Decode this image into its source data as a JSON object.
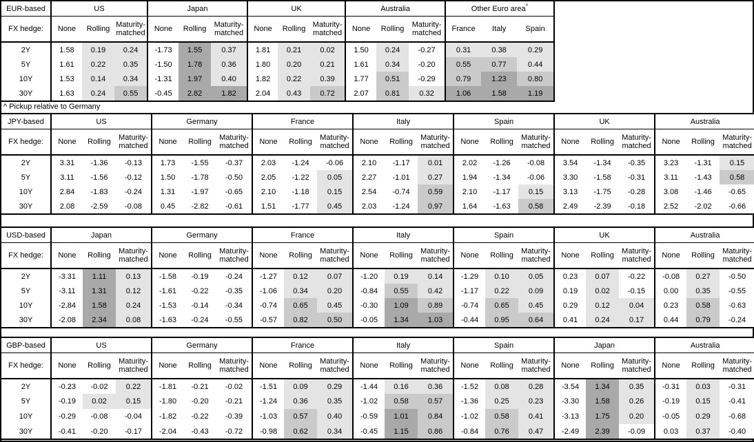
{
  "footnote": "^ Pickup relative to Germany",
  "hedge_label": "FX hedge:",
  "hedge_columns": [
    "None",
    "Rolling",
    "Maturity-matched"
  ],
  "tenors": [
    "2Y",
    "5Y",
    "10Y",
    "30Y"
  ],
  "shading": {
    "negative": "#ffffff",
    "low": "#e4e4e4",
    "mid": "#cacaca",
    "high": "#a9a9a9",
    "thresholds": [
      0,
      0.5,
      1.0
    ]
  },
  "tables": [
    {
      "base_label": "EUR-based",
      "groups": [
        {
          "name": "US",
          "columns": "hedge",
          "rows": [
            [
              "1.58",
              "0.19",
              "0.24"
            ],
            [
              "1.61",
              "0.22",
              "0.35"
            ],
            [
              "1.53",
              "0.14",
              "0.34"
            ],
            [
              "1.63",
              "0.24",
              "0.55"
            ]
          ]
        },
        {
          "name": "Japan",
          "columns": "hedge",
          "rows": [
            [
              "-1.73",
              "1.55",
              "0.37"
            ],
            [
              "-1.50",
              "1.78",
              "0.36"
            ],
            [
              "-1.31",
              "1.97",
              "0.40"
            ],
            [
              "-0.45",
              "2.82",
              "1.82"
            ]
          ]
        },
        {
          "name": "UK",
          "columns": "hedge",
          "rows": [
            [
              "1.81",
              "0.21",
              "0.02"
            ],
            [
              "1.80",
              "0.20",
              "0.21"
            ],
            [
              "1.82",
              "0.22",
              "0.39"
            ],
            [
              "2.04",
              "0.43",
              "0.72"
            ]
          ]
        },
        {
          "name": "Australia",
          "columns": "hedge",
          "rows": [
            [
              "1.50",
              "0.24",
              "-0.27"
            ],
            [
              "1.61",
              "0.34",
              "-0.20"
            ],
            [
              "1.77",
              "0.51",
              "-0.29"
            ],
            [
              "2.07",
              "0.81",
              "0.32"
            ]
          ]
        },
        {
          "name": "Other Euro area",
          "superscript": "^",
          "sub_columns": [
            "France",
            "Italy",
            "Spain"
          ],
          "shade_all": true,
          "rows": [
            [
              "0.31",
              "0.38",
              "0.29"
            ],
            [
              "0.55",
              "0.77",
              "0.44"
            ],
            [
              "0.79",
              "1.23",
              "0.80"
            ],
            [
              "1.06",
              "1.58",
              "1.19"
            ]
          ]
        }
      ]
    },
    {
      "base_label": "JPY-based",
      "groups": [
        {
          "name": "US",
          "columns": "hedge",
          "rows": [
            [
              "3.31",
              "-1.36",
              "-0.13"
            ],
            [
              "3.11",
              "-1.56",
              "-0.12"
            ],
            [
              "2.84",
              "-1.83",
              "-0.24"
            ],
            [
              "2.08",
              "-2.59",
              "-0.08"
            ]
          ]
        },
        {
          "name": "Germany",
          "columns": "hedge",
          "rows": [
            [
              "1.73",
              "-1.55",
              "-0.37"
            ],
            [
              "1.50",
              "-1.78",
              "-0.50"
            ],
            [
              "1.31",
              "-1.97",
              "-0.65"
            ],
            [
              "0.45",
              "-2.82",
              "-0.61"
            ]
          ]
        },
        {
          "name": "France",
          "columns": "hedge",
          "rows": [
            [
              "2.03",
              "-1.24",
              "-0.06"
            ],
            [
              "2.05",
              "-1.22",
              "0.05"
            ],
            [
              "2.10",
              "-1.18",
              "0.15"
            ],
            [
              "1.51",
              "-1.77",
              "0.45"
            ]
          ]
        },
        {
          "name": "Italy",
          "columns": "hedge",
          "rows": [
            [
              "2.10",
              "-1.17",
              "0.01"
            ],
            [
              "2.27",
              "-1.01",
              "0.27"
            ],
            [
              "2.54",
              "-0.74",
              "0.59"
            ],
            [
              "2.03",
              "-1.24",
              "0.97"
            ]
          ]
        },
        {
          "name": "Spain",
          "columns": "hedge",
          "rows": [
            [
              "2.02",
              "-1.26",
              "-0.08"
            ],
            [
              "1.94",
              "-1.34",
              "-0.06"
            ],
            [
              "2.10",
              "-1.17",
              "0.15"
            ],
            [
              "1.64",
              "-1.63",
              "0.58"
            ]
          ]
        },
        {
          "name": "UK",
          "columns": "hedge",
          "rows": [
            [
              "3.54",
              "-1.34",
              "-0.35"
            ],
            [
              "3.30",
              "-1.58",
              "-0.31"
            ],
            [
              "3.13",
              "-1.75",
              "-0.28"
            ],
            [
              "2.49",
              "-2.39",
              "-0.18"
            ]
          ]
        },
        {
          "name": "Australia",
          "columns": "hedge",
          "rows": [
            [
              "3.23",
              "-1.31",
              "0.15"
            ],
            [
              "3.11",
              "-1.43",
              "0.58"
            ],
            [
              "3.08",
              "-1.46",
              "-0.65"
            ],
            [
              "2.52",
              "-2.02",
              "-0.66"
            ]
          ]
        }
      ]
    },
    {
      "base_label": "USD-based",
      "groups": [
        {
          "name": "Japan",
          "columns": "hedge",
          "rows": [
            [
              "-3.31",
              "1.11",
              "0.13"
            ],
            [
              "-3.11",
              "1.31",
              "0.12"
            ],
            [
              "-2.84",
              "1.58",
              "0.24"
            ],
            [
              "-2.08",
              "2.34",
              "0.08"
            ]
          ]
        },
        {
          "name": "Germany",
          "columns": "hedge",
          "rows": [
            [
              "-1.58",
              "-0.19",
              "-0.24"
            ],
            [
              "-1.61",
              "-0.22",
              "-0.35"
            ],
            [
              "-1.53",
              "-0.14",
              "-0.34"
            ],
            [
              "-1.63",
              "-0.24",
              "-0.55"
            ]
          ]
        },
        {
          "name": "France",
          "columns": "hedge",
          "rows": [
            [
              "-1.27",
              "0.12",
              "0.07"
            ],
            [
              "-1.06",
              "0.34",
              "0.20"
            ],
            [
              "-0.74",
              "0.65",
              "0.45"
            ],
            [
              "-0.57",
              "0.82",
              "0.50"
            ]
          ]
        },
        {
          "name": "Italy",
          "columns": "hedge",
          "rows": [
            [
              "-1.20",
              "0.19",
              "0.14"
            ],
            [
              "-0.84",
              "0.55",
              "0.42"
            ],
            [
              "-0.30",
              "1.09",
              "0.89"
            ],
            [
              "-0.05",
              "1.34",
              "1.03"
            ]
          ]
        },
        {
          "name": "Spain",
          "columns": "hedge",
          "rows": [
            [
              "-1.29",
              "0.10",
              "0.05"
            ],
            [
              "-1.17",
              "0.22",
              "0.09"
            ],
            [
              "-0.74",
              "0.65",
              "0.45"
            ],
            [
              "-0.44",
              "0.95",
              "0.64"
            ]
          ]
        },
        {
          "name": "UK",
          "columns": "hedge",
          "rows": [
            [
              "0.23",
              "0.07",
              "-0.22"
            ],
            [
              "0.19",
              "0.02",
              "-0.15"
            ],
            [
              "0.29",
              "0.12",
              "0.04"
            ],
            [
              "0.41",
              "0.24",
              "0.17"
            ]
          ]
        },
        {
          "name": "Australia",
          "columns": "hedge",
          "rows": [
            [
              "-0.08",
              "0.27",
              "-0.50"
            ],
            [
              "0.00",
              "0.35",
              "-0.55"
            ],
            [
              "0.23",
              "0.58",
              "-0.63"
            ],
            [
              "0.44",
              "0.79",
              "-0.24"
            ]
          ]
        }
      ]
    },
    {
      "base_label": "GBP-based",
      "groups": [
        {
          "name": "US",
          "columns": "hedge",
          "rows": [
            [
              "-0.23",
              "-0.02",
              "0.22"
            ],
            [
              "-0.19",
              "0.02",
              "0.15"
            ],
            [
              "-0.29",
              "-0.08",
              "-0.04"
            ],
            [
              "-0.41",
              "-0.20",
              "-0.17"
            ]
          ]
        },
        {
          "name": "Germany",
          "columns": "hedge",
          "rows": [
            [
              "-1.81",
              "-0.21",
              "-0.02"
            ],
            [
              "-1.80",
              "-0.20",
              "-0.21"
            ],
            [
              "-1.82",
              "-0.22",
              "-0.39"
            ],
            [
              "-2.04",
              "-0.43",
              "-0.72"
            ]
          ]
        },
        {
          "name": "France",
          "columns": "hedge",
          "rows": [
            [
              "-1.51",
              "0.09",
              "0.29"
            ],
            [
              "-1.24",
              "0.36",
              "0.35"
            ],
            [
              "-1.03",
              "0.57",
              "0.40"
            ],
            [
              "-0.98",
              "0.62",
              "0.34"
            ]
          ]
        },
        {
          "name": "Italy",
          "columns": "hedge",
          "rows": [
            [
              "-1.44",
              "0.16",
              "0.36"
            ],
            [
              "-1.02",
              "0.58",
              "0.57"
            ],
            [
              "-0.59",
              "1.01",
              "0.84"
            ],
            [
              "-0.45",
              "1.15",
              "0.86"
            ]
          ]
        },
        {
          "name": "Spain",
          "columns": "hedge",
          "rows": [
            [
              "-1.52",
              "0.08",
              "0.28"
            ],
            [
              "-1.36",
              "0.25",
              "0.23"
            ],
            [
              "-1.02",
              "0.58",
              "0.41"
            ],
            [
              "-0.84",
              "0.76",
              "0.47"
            ]
          ]
        },
        {
          "name": "Japan",
          "columns": "hedge",
          "rows": [
            [
              "-3.54",
              "1.34",
              "0.35"
            ],
            [
              "-3.30",
              "1.58",
              "0.26"
            ],
            [
              "-3.13",
              "1.75",
              "0.20"
            ],
            [
              "-2.49",
              "2.39",
              "-0.09"
            ]
          ]
        },
        {
          "name": "Australia",
          "columns": "hedge",
          "rows": [
            [
              "-0.31",
              "0.03",
              "-0.31"
            ],
            [
              "-0.19",
              "0.15",
              "-0.41"
            ],
            [
              "-0.05",
              "0.29",
              "-0.68"
            ],
            [
              "0.03",
              "0.37",
              "-0.40"
            ]
          ]
        }
      ]
    }
  ]
}
